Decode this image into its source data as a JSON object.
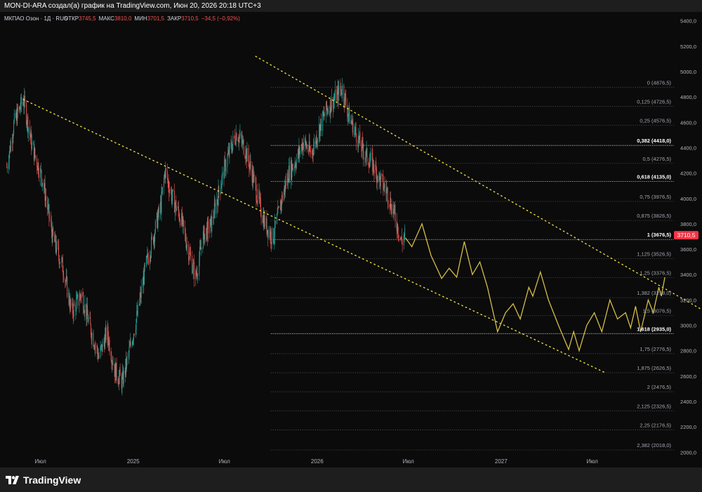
{
  "header": {
    "credit": "MON-DI-ARA создал(а) график на TradingView.com, Июн 20, 2026 20:18 UTC+3"
  },
  "legend": {
    "symbol": "МКПАО Озон · 1Д · RUS",
    "open_label": "ОТКР",
    "open": "3745,5",
    "high_label": "МАКС",
    "high": "3810,0",
    "low_label": "МИН",
    "low": "3701,5",
    "close_label": "ЗАКР",
    "close": "3710,5",
    "change": "−34,5 (−0,92%)"
  },
  "branding": {
    "logo_text": "TradingView",
    "logo_icon": "tradingview-logo-icon"
  },
  "colors": {
    "up": "#26a69a",
    "down": "#ef5350",
    "projection": "#d4bd48",
    "trend": "#e8d93a",
    "price_tag": "#f23645",
    "bg": "#0b0b0b"
  },
  "chart_data": {
    "type": "candlestick",
    "price_scale": {
      "ticks": [
        5400,
        5200,
        5000,
        4800,
        4600,
        4400,
        4200,
        4000,
        3800,
        3600,
        3400,
        3200,
        3000,
        2800,
        2600,
        2400,
        2200,
        2000
      ],
      "tick_labels": [
        "5400,0",
        "5200,0",
        "5000,0",
        "4800,0",
        "4600,0",
        "4400,0",
        "4200,0",
        "4000,0",
        "3800,0",
        "3600,0",
        "3400,0",
        "3200,0",
        "3000,0",
        "2800,0",
        "2600,0",
        "2400,0",
        "2200,0",
        "2000,0"
      ],
      "range": [
        1930,
        5470
      ]
    },
    "time_scale": {
      "range": [
        "2024-04-20",
        "2027-12-10"
      ],
      "ticks": [
        {
          "date": "2024-07-01",
          "label": "Июл"
        },
        {
          "date": "2025-01-01",
          "label": "2025"
        },
        {
          "date": "2025-07-01",
          "label": "Июл"
        },
        {
          "date": "2026-01-01",
          "label": "2026"
        },
        {
          "date": "2026-07-01",
          "label": "Июл"
        },
        {
          "date": "2027-01-01",
          "label": "2027"
        },
        {
          "date": "2027-07-01",
          "label": "Июл"
        }
      ]
    },
    "last_price": {
      "value": 3710.5,
      "label": "3710,5"
    },
    "price_path": [
      [
        "2024-04-25",
        4250
      ],
      [
        "2024-05-10",
        4600
      ],
      [
        "2024-05-28",
        4780
      ],
      [
        "2024-06-15",
        4400
      ],
      [
        "2024-07-05",
        4150
      ],
      [
        "2024-07-25",
        3700
      ],
      [
        "2024-08-15",
        3450
      ],
      [
        "2024-09-01",
        3100
      ],
      [
        "2024-09-20",
        3250
      ],
      [
        "2024-10-10",
        2950
      ],
      [
        "2024-10-25",
        2750
      ],
      [
        "2024-11-10",
        2950
      ],
      [
        "2024-11-25",
        2650
      ],
      [
        "2024-12-10",
        2550
      ],
      [
        "2024-12-20",
        2720
      ],
      [
        "2025-01-10",
        3100
      ],
      [
        "2025-01-25",
        3450
      ],
      [
        "2025-02-10",
        3700
      ],
      [
        "2025-02-25",
        3950
      ],
      [
        "2025-03-05",
        4220
      ],
      [
        "2025-03-20",
        4000
      ],
      [
        "2025-04-05",
        3850
      ],
      [
        "2025-04-20",
        3600
      ],
      [
        "2025-05-05",
        3380
      ],
      [
        "2025-05-20",
        3700
      ],
      [
        "2025-06-05",
        3800
      ],
      [
        "2025-06-20",
        4050
      ],
      [
        "2025-07-05",
        4300
      ],
      [
        "2025-07-25",
        4520
      ],
      [
        "2025-08-10",
        4400
      ],
      [
        "2025-08-25",
        4200
      ],
      [
        "2025-09-05",
        4000
      ],
      [
        "2025-09-20",
        3800
      ],
      [
        "2025-10-05",
        3680
      ],
      [
        "2025-10-20",
        3950
      ],
      [
        "2025-11-05",
        4200
      ],
      [
        "2025-11-20",
        4300
      ],
      [
        "2025-12-05",
        4450
      ],
      [
        "2025-12-20",
        4350
      ],
      [
        "2026-01-05",
        4550
      ],
      [
        "2026-01-20",
        4700
      ],
      [
        "2026-02-05",
        4790
      ],
      [
        "2026-02-20",
        4870
      ],
      [
        "2026-03-05",
        4650
      ],
      [
        "2026-03-20",
        4500
      ],
      [
        "2026-04-05",
        4350
      ],
      [
        "2026-04-20",
        4280
      ],
      [
        "2026-05-05",
        4150
      ],
      [
        "2026-05-20",
        4050
      ],
      [
        "2026-06-05",
        3850
      ],
      [
        "2026-06-18",
        3650
      ],
      [
        "2026-06-24",
        3720
      ]
    ],
    "projection_path": [
      [
        "2026-06-25",
        3690
      ],
      [
        "2026-07-08",
        3620
      ],
      [
        "2026-07-28",
        3800
      ],
      [
        "2026-08-15",
        3550
      ],
      [
        "2026-09-05",
        3370
      ],
      [
        "2026-09-20",
        3450
      ],
      [
        "2026-10-05",
        3380
      ],
      [
        "2026-10-20",
        3660
      ],
      [
        "2026-11-05",
        3400
      ],
      [
        "2026-11-20",
        3500
      ],
      [
        "2026-12-05",
        3300
      ],
      [
        "2026-12-25",
        2950
      ],
      [
        "2027-01-10",
        3100
      ],
      [
        "2027-01-25",
        3170
      ],
      [
        "2027-02-08",
        3050
      ],
      [
        "2027-02-25",
        3300
      ],
      [
        "2027-03-05",
        3230
      ],
      [
        "2027-03-20",
        3420
      ],
      [
        "2027-04-05",
        3200
      ],
      [
        "2027-04-25",
        3000
      ],
      [
        "2027-05-15",
        2810
      ],
      [
        "2027-05-25",
        2950
      ],
      [
        "2027-06-05",
        2800
      ],
      [
        "2027-06-20",
        3000
      ],
      [
        "2027-07-05",
        3100
      ],
      [
        "2027-07-20",
        2950
      ],
      [
        "2027-08-05",
        3200
      ],
      [
        "2027-08-20",
        3050
      ],
      [
        "2027-09-05",
        3100
      ],
      [
        "2027-09-15",
        2980
      ],
      [
        "2027-09-25",
        3150
      ],
      [
        "2027-10-05",
        2950
      ],
      [
        "2027-10-20",
        3200
      ],
      [
        "2027-10-30",
        3100
      ],
      [
        "2027-11-10",
        3300
      ],
      [
        "2027-11-15",
        3230
      ],
      [
        "2027-11-22",
        3380
      ]
    ],
    "trendlines": [
      {
        "from": [
          "2025-09-01",
          5120
        ],
        "to": [
          "2028-04-25",
          2940
        ]
      },
      {
        "from": [
          "2024-05-28",
          4780
        ],
        "to": [
          "2027-07-25",
          2630
        ]
      }
    ],
    "fib_levels": [
      {
        "value": 4876.5,
        "label": "0 (4876,5)",
        "bold": false
      },
      {
        "value": 4726.5,
        "label": "0,125 (4726,5)",
        "bold": false
      },
      {
        "value": 4576.5,
        "label": "0,25 (4576,5)",
        "bold": false
      },
      {
        "value": 4418.0,
        "label": "0,382 (4418,0)",
        "bold": true
      },
      {
        "value": 4276.5,
        "label": "0,5 (4276,5)",
        "bold": false
      },
      {
        "value": 4135.0,
        "label": "0,618 (4135,0)",
        "bold": true
      },
      {
        "value": 3976.5,
        "label": "0,75 (3976,5)",
        "bold": false
      },
      {
        "value": 3826.5,
        "label": "0,875 (3826,5)",
        "bold": false
      },
      {
        "value": 3676.5,
        "label": "1 (3676,5)",
        "bold": true
      },
      {
        "value": 3526.5,
        "label": "1,125 (3526,5)",
        "bold": false
      },
      {
        "value": 3376.5,
        "label": "1,25 (3376,5)",
        "bold": false
      },
      {
        "value": 3218.0,
        "label": "1,382 (3218,0)",
        "bold": false
      },
      {
        "value": 3076.5,
        "label": "1,5 (3076,5)",
        "bold": false
      },
      {
        "value": 2935.0,
        "label": "1,618 (2935,0)",
        "bold": true
      },
      {
        "value": 2776.5,
        "label": "1,75 (2776,5)",
        "bold": false
      },
      {
        "value": 2626.5,
        "label": "1,875 (2626,5)",
        "bold": false
      },
      {
        "value": 2476.5,
        "label": "2 (2476,5)",
        "bold": false
      },
      {
        "value": 2326.5,
        "label": "2,125 (2326,5)",
        "bold": false
      },
      {
        "value": 2176.5,
        "label": "2,25 (2176,5)",
        "bold": false
      },
      {
        "value": 2018.0,
        "label": "2,382 (2018,0)",
        "bold": false
      }
    ]
  }
}
